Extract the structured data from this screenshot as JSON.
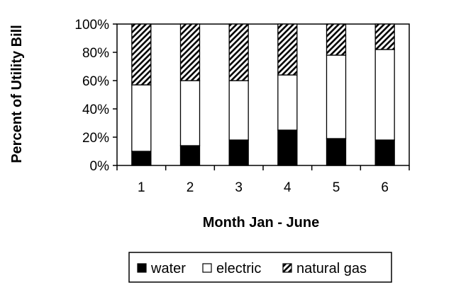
{
  "chart_data": {
    "type": "bar",
    "stacked": true,
    "percent_stacked": true,
    "xlabel": "Month Jan - June",
    "ylabel": "Percent of Utility Bill",
    "categories": [
      "1",
      "2",
      "3",
      "4",
      "5",
      "6"
    ],
    "ylim": [
      0,
      100
    ],
    "y_ticks": [
      "0%",
      "20%",
      "40%",
      "60%",
      "80%",
      "100%"
    ],
    "y_tick_values": [
      0,
      20,
      40,
      60,
      80,
      100
    ],
    "grid": false,
    "legend_position": "bottom",
    "series": [
      {
        "name": "water",
        "fill": "solid",
        "color": "#000000",
        "values": [
          10,
          14,
          18,
          25,
          19,
          18
        ]
      },
      {
        "name": "electric",
        "fill": "empty",
        "color": "#ffffff",
        "values": [
          47,
          46,
          42,
          39,
          59,
          64
        ]
      },
      {
        "name": "natural gas",
        "fill": "diagonal-hatch",
        "color": "#000000",
        "values": [
          43,
          40,
          40,
          36,
          22,
          18
        ]
      }
    ]
  }
}
